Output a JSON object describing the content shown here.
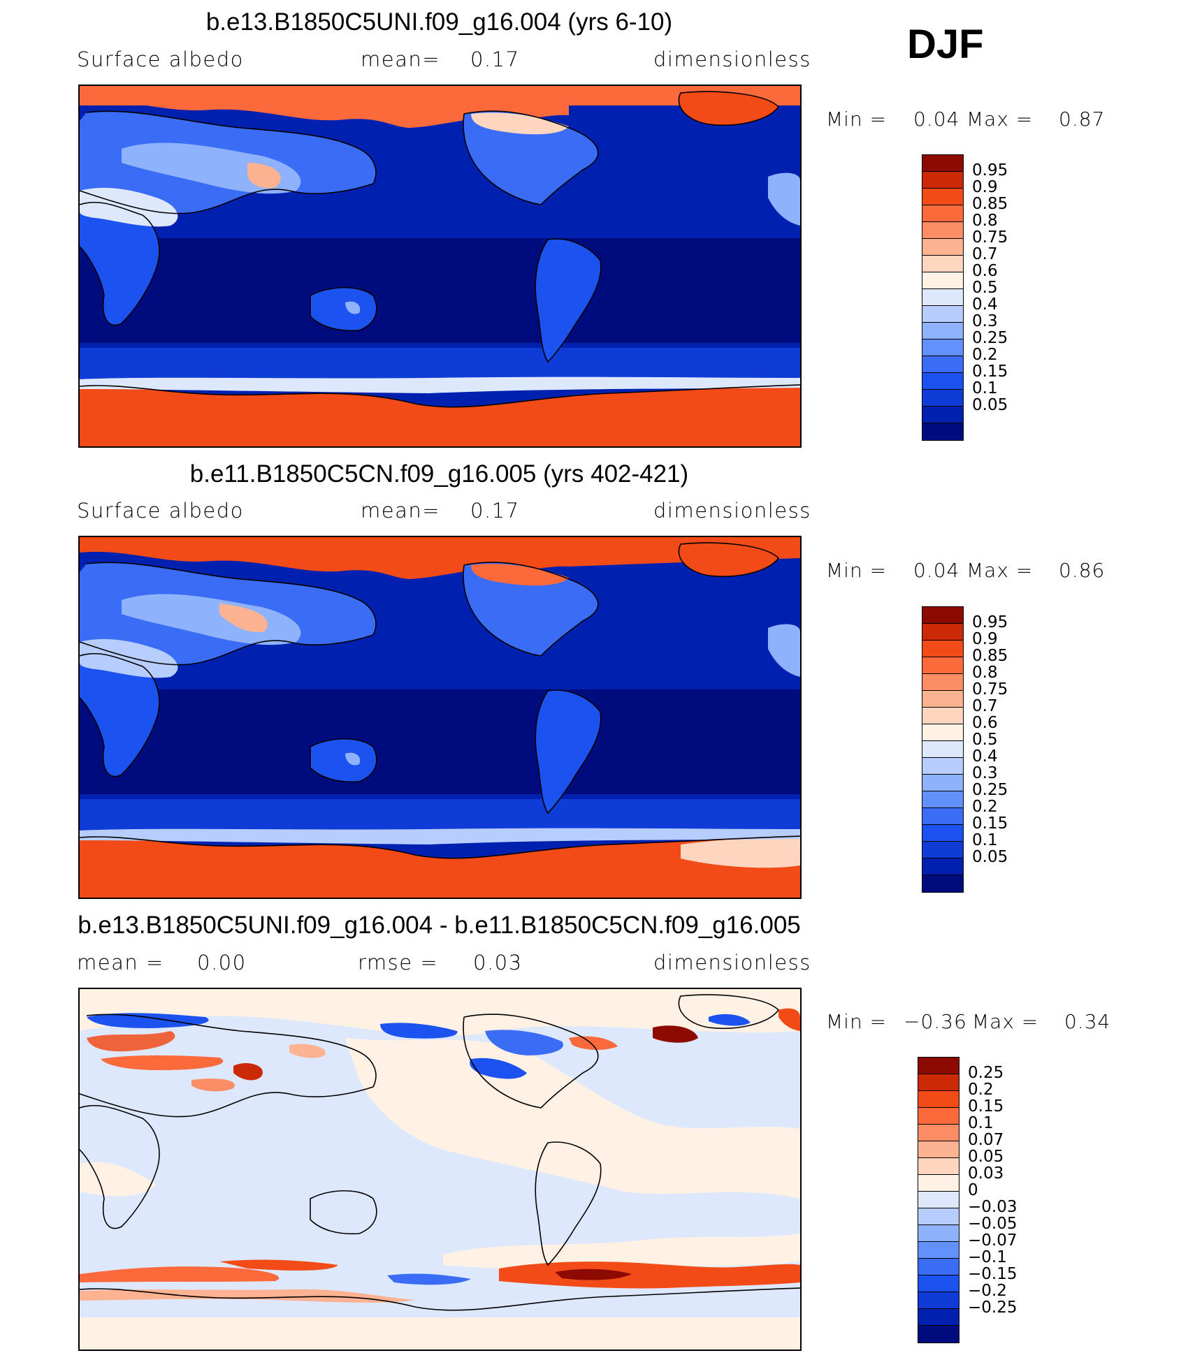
{
  "season": "DJF",
  "palettes": {
    "abs": [
      "#000b7d",
      "#0021b0",
      "#0f3bd6",
      "#1c52f0",
      "#3a6cf6",
      "#6391fb",
      "#8fb2fc",
      "#b6cdfd",
      "#dde8fd",
      "#fff1e4",
      "#fed6bf",
      "#fdb292",
      "#fd8d64",
      "#fc6a3c",
      "#f24b17",
      "#cc2a06",
      "#8c0a00"
    ],
    "diff": [
      "#000b7d",
      "#0021b0",
      "#0f3bd6",
      "#1c52f0",
      "#3a6cf6",
      "#6391fb",
      "#8fb2fc",
      "#b6cdfd",
      "#dde8fd",
      "#fff1e4",
      "#fed6bf",
      "#fdb292",
      "#fd8d64",
      "#fc6a3c",
      "#f24b17",
      "#cc2a06",
      "#8c0a00"
    ]
  },
  "panels": [
    {
      "title": "b.e13.B1850C5UNI.f09_g16.004 (yrs 6-10)",
      "left_label": "Surface albedo",
      "mid_label": "mean=",
      "mid_value": "0.17",
      "right_label": "dimensionless",
      "min_label": "Min =",
      "min_value": "0.04",
      "max_label": "Max =",
      "max_value": "0.87",
      "kind": "abs",
      "levels": [
        "0.95",
        "0.9",
        "0.85",
        "0.8",
        "0.75",
        "0.7",
        "0.6",
        "0.5",
        "0.4",
        "0.3",
        "0.25",
        "0.2",
        "0.15",
        "0.1",
        "0.05"
      ]
    },
    {
      "title": "b.e11.B1850C5CN.f09_g16.005 (yrs 402-421)",
      "left_label": "Surface albedo",
      "mid_label": "mean=",
      "mid_value": "0.17",
      "right_label": "dimensionless",
      "min_label": "Min =",
      "min_value": "0.04",
      "max_label": "Max =",
      "max_value": "0.86",
      "kind": "abs",
      "levels": [
        "0.95",
        "0.9",
        "0.85",
        "0.8",
        "0.75",
        "0.7",
        "0.6",
        "0.5",
        "0.4",
        "0.3",
        "0.25",
        "0.2",
        "0.15",
        "0.1",
        "0.05"
      ]
    },
    {
      "title": "b.e13.B1850C5UNI.f09_g16.004 - b.e11.B1850C5CN.f09_g16.005",
      "left_label": "mean =",
      "left_value": "0.00",
      "mid_label": "rmse =",
      "mid_value": "0.03",
      "right_label": "dimensionless",
      "min_label": "Min =",
      "min_value": "−0.36",
      "max_label": "Max =",
      "max_value": "0.34",
      "kind": "diff",
      "levels": [
        "0.25",
        "0.2",
        "0.15",
        "0.1",
        "0.07",
        "0.05",
        "0.03",
        "0",
        "−0.03",
        "−0.05",
        "−0.07",
        "−0.1",
        "−0.15",
        "−0.2",
        "−0.25"
      ]
    }
  ]
}
